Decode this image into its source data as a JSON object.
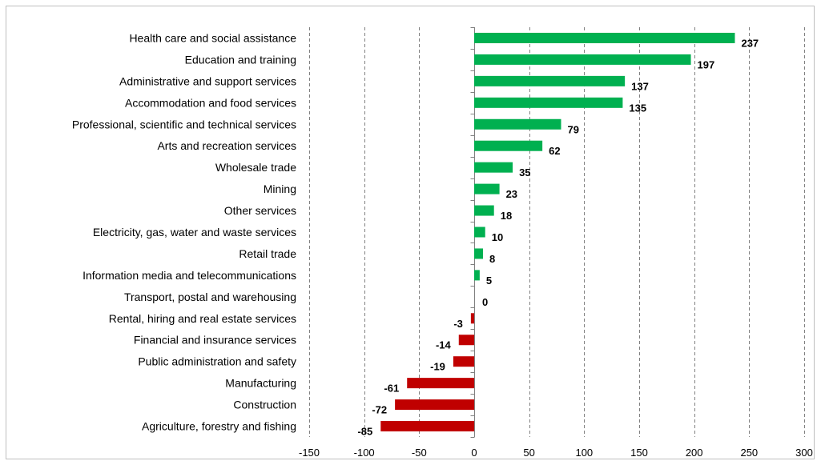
{
  "chart_data": {
    "type": "bar",
    "orientation": "horizontal",
    "categories": [
      "Health care and social assistance",
      "Education and training",
      "Administrative and support services",
      "Accommodation and food services",
      "Professional, scientific and technical services",
      "Arts and recreation services",
      "Wholesale trade",
      "Mining",
      "Other services",
      "Electricity, gas, water and waste services",
      "Retail trade",
      "Information media and telecommunications",
      "Transport, postal and warehousing",
      "Rental, hiring and real estate services",
      "Financial and insurance services",
      "Public administration and safety",
      "Manufacturing",
      "Construction",
      "Agriculture, forestry and fishing"
    ],
    "values": [
      237,
      197,
      137,
      135,
      79,
      62,
      35,
      23,
      18,
      10,
      8,
      5,
      0,
      -3,
      -14,
      -19,
      -61,
      -72,
      -85
    ],
    "data_labels": [
      "237",
      "197",
      "137",
      "135",
      "79",
      "62",
      "35",
      "23",
      "18",
      "10",
      "8",
      "5",
      "0",
      "-3",
      "-14",
      "-19",
      "-61",
      "-72",
      "-85"
    ],
    "xlim": [
      -150,
      300
    ],
    "x_ticks": [
      -150,
      -100,
      -50,
      0,
      50,
      100,
      150,
      200,
      250,
      300
    ],
    "x_tick_labels": [
      "-150",
      "-100",
      "-50",
      "0",
      "50",
      "100",
      "150",
      "200",
      "250",
      "300"
    ],
    "grid": "vertical-dashed",
    "legend": "none",
    "colors": {
      "positive": "#00b050",
      "negative": "#c00000",
      "grid": "#808080",
      "frame": "#bfbfbf"
    }
  }
}
